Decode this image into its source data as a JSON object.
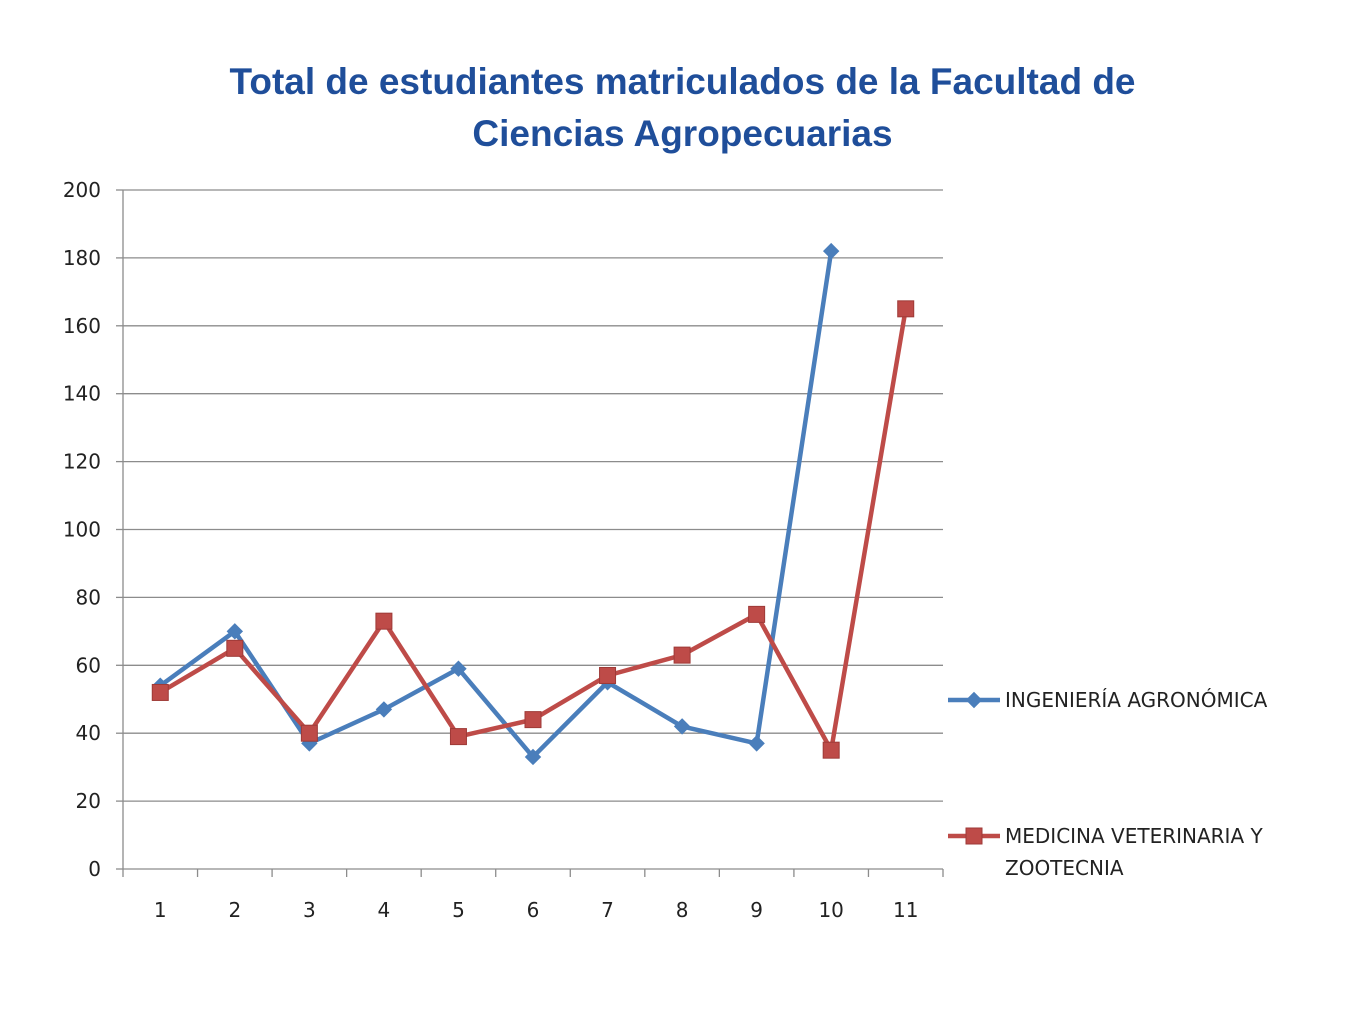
{
  "chart_data": {
    "type": "line",
    "title_lines": [
      "Total de estudiantes matriculados de la Facultad de",
      "Ciencias Agropecuarias"
    ],
    "categories": [
      "1",
      "2",
      "3",
      "4",
      "5",
      "6",
      "7",
      "8",
      "9",
      "10",
      "11"
    ],
    "ylim": [
      0,
      200
    ],
    "yticks": [
      "0",
      "20",
      "40",
      "60",
      "80",
      "100",
      "120",
      "140",
      "160",
      "180",
      "200"
    ],
    "grid": true,
    "legend_position": "right",
    "series": [
      {
        "name": "INGENIERÍA AGRONÓMICA",
        "legend_lines": [
          "INGENIERÍA AGRONÓMICA"
        ],
        "color": "#4a7ebb",
        "marker": "diamond",
        "values": [
          54,
          70,
          37,
          47,
          59,
          33,
          55,
          42,
          37,
          182,
          null
        ]
      },
      {
        "name": "MEDICINA VETERINARIA Y ZOOTECNIA",
        "legend_lines": [
          "MEDICINA VETERINARIA Y",
          "ZOOTECNIA"
        ],
        "color": "#be4b48",
        "marker": "square",
        "values": [
          52,
          65,
          40,
          73,
          39,
          44,
          57,
          63,
          75,
          35,
          165
        ]
      }
    ]
  }
}
